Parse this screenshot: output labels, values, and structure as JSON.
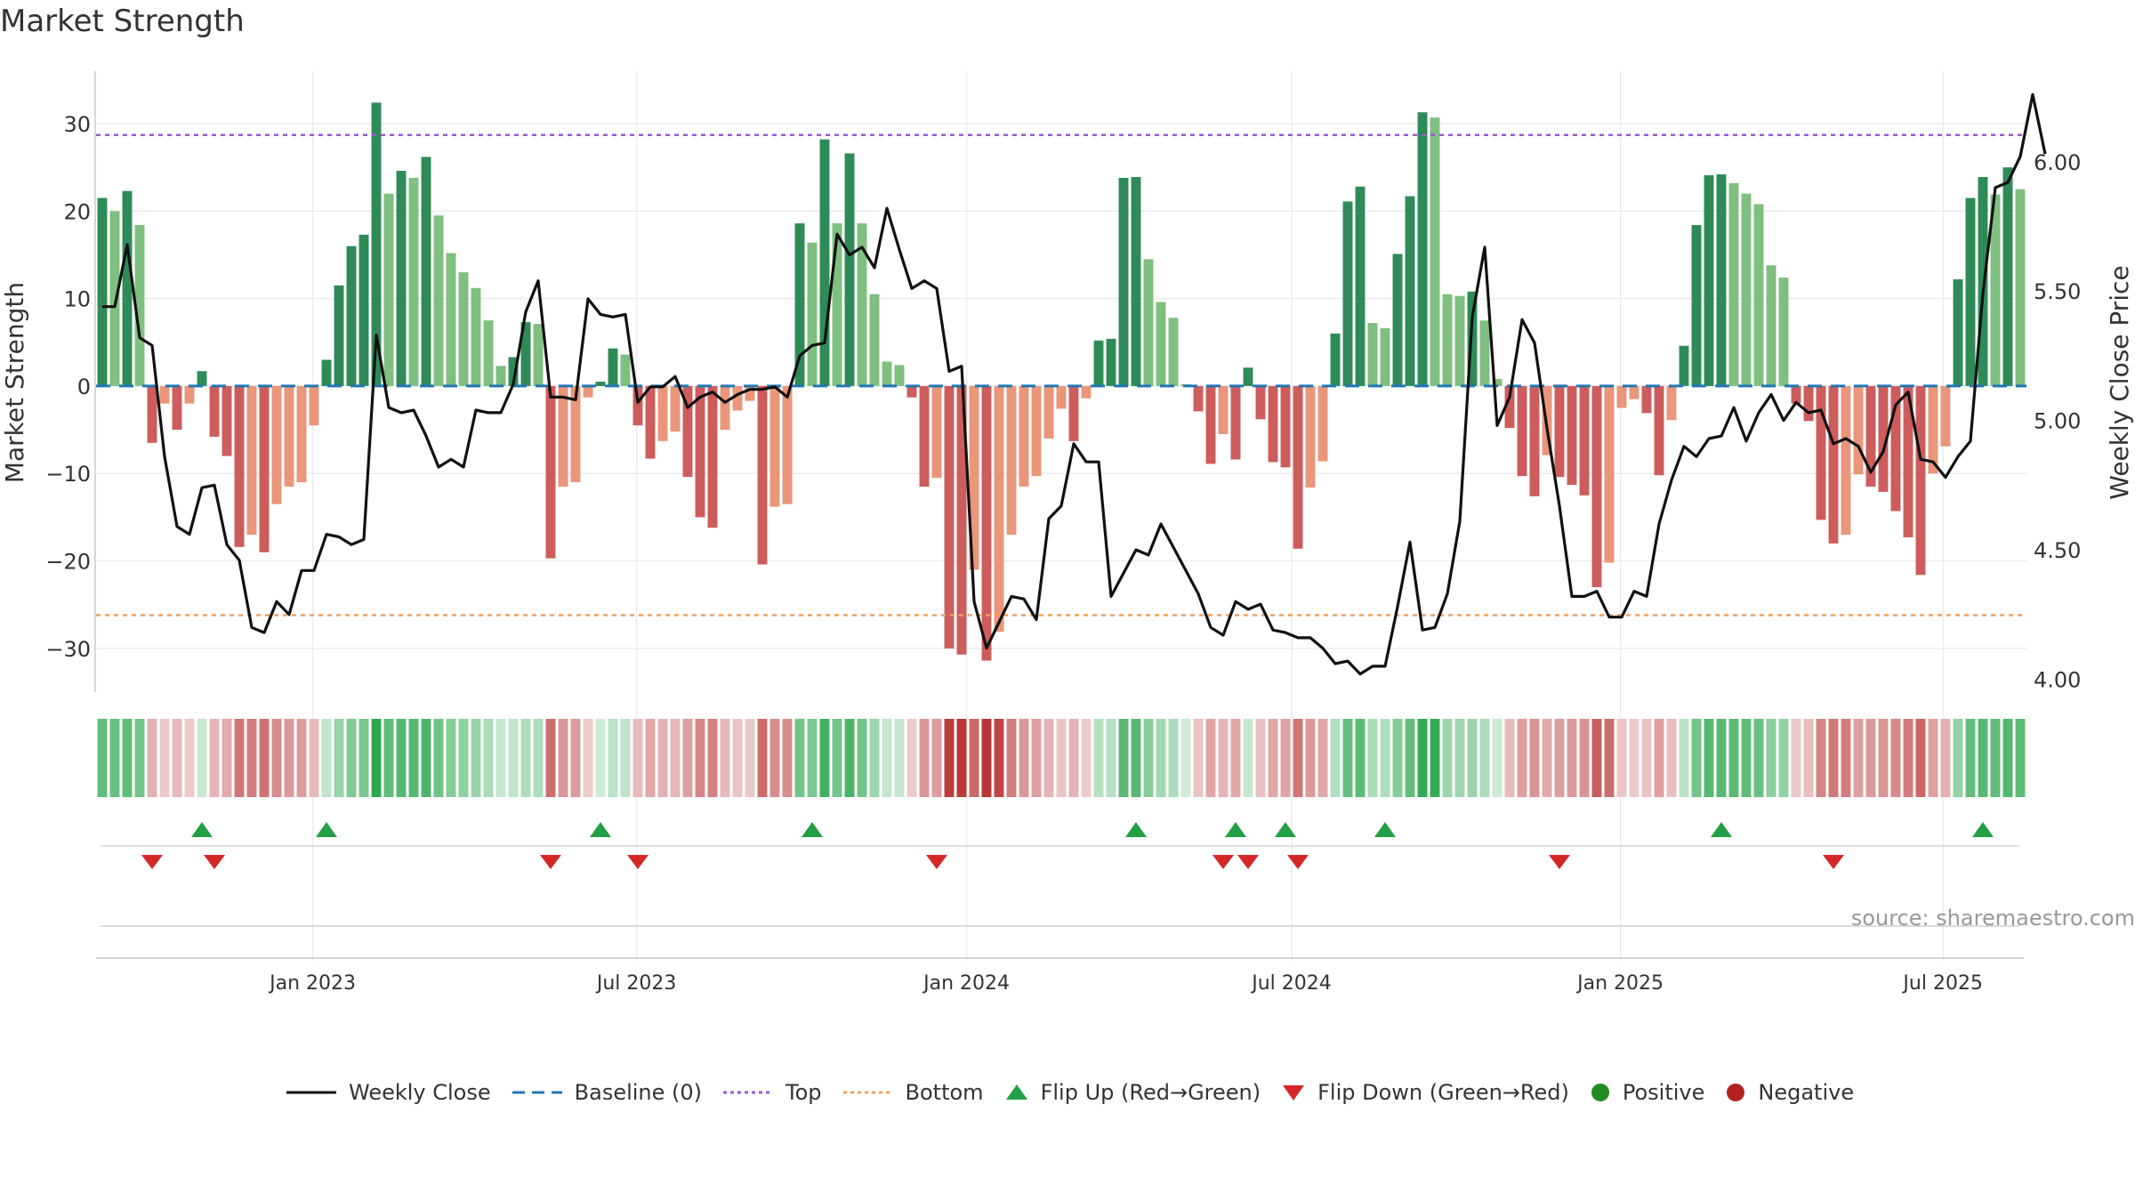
{
  "chart_data": {
    "type": "bar",
    "title": "Market Strength",
    "ylabel": "Market Strength",
    "y2label": "Weekly Close Price",
    "ylim": [
      -35,
      36
    ],
    "y2lim": [
      3.95,
      6.35
    ],
    "yticks": [
      "30",
      "20",
      "10",
      "0",
      "−10",
      "−20",
      "−30"
    ],
    "ytick_values": [
      30,
      20,
      10,
      0,
      -10,
      -20,
      -30
    ],
    "y2ticks": [
      "6.00",
      "5.50",
      "5.00",
      "4.50",
      "4.00"
    ],
    "y2tick_values": [
      6.0,
      5.5,
      5.0,
      4.5,
      4.0
    ],
    "xticks": [
      "Jan 2023",
      "Jul 2023",
      "Jan 2024",
      "Jul 2024",
      "Jan 2025",
      "Jul 2025"
    ],
    "xtick_weeks": [
      17.4,
      43.4,
      69.9,
      96,
      122.4,
      148.3
    ],
    "top_level": 28.7,
    "bottom_level": -26.2,
    "grid": true,
    "legend_position": "bottom",
    "source": "source: sharemaestro.com",
    "strength": [
      21.5,
      20,
      22.3,
      18.4,
      -6.5,
      -2,
      -5,
      -2,
      1.7,
      -5.8,
      -8,
      -18.4,
      -17,
      -19,
      -13.5,
      -11.5,
      -11,
      -4.5,
      3,
      11.5,
      16,
      17.3,
      32.4,
      22,
      24.6,
      23.8,
      26.2,
      19.5,
      15.2,
      13,
      11.2,
      7.5,
      2.3,
      3.3,
      7.3,
      7.1,
      -19.7,
      -11.5,
      -11,
      -1.3,
      0.5,
      4.3,
      3.6,
      -4.5,
      -8.3,
      -6.3,
      -5.2,
      -10.4,
      -15,
      -16.2,
      -5,
      -2.8,
      -1.7,
      -20.4,
      -13.8,
      -13.5,
      18.6,
      16.4,
      28.2,
      18.6,
      26.6,
      18.6,
      10.5,
      2.8,
      2.4,
      -1.3,
      -11.5,
      -10.5,
      -30,
      -30.7,
      -21,
      -31.4,
      -28.1,
      -17,
      -11.5,
      -10.3,
      -6,
      -2.6,
      -6.3,
      -1.4,
      5.2,
      5.4,
      23.8,
      23.9,
      14.5,
      9.6,
      7.8,
      0.2,
      -2.9,
      -8.9,
      -5.5,
      -8.4,
      2.1,
      -3.8,
      -8.7,
      -9.3,
      -18.6,
      -11.6,
      -8.6,
      6,
      21.1,
      22.8,
      7.2,
      6.6,
      15.1,
      21.7,
      31.3,
      30.7,
      10.5,
      10.3,
      10.8,
      7.5,
      0.8,
      -4.8,
      -10.3,
      -12.6,
      -7.9,
      -10.4,
      -11.3,
      -12.5,
      -23,
      -20.2,
      -2.5,
      -1.5,
      -3.1,
      -10.2,
      -3.9,
      4.6,
      18.4,
      24.1,
      24.2,
      23.2,
      22,
      20.8,
      13.8,
      12.4,
      -2,
      -4,
      -15.3,
      -18,
      -17,
      -10.1,
      -11.5,
      -12.1,
      -14.3,
      -17.3,
      -21.6,
      -10,
      -6.9,
      12.2,
      21.5,
      23.9,
      21.9,
      25,
      22.5
    ],
    "weekly_close": [
      5.44,
      5.44,
      5.68,
      5.32,
      5.29,
      4.86,
      4.59,
      4.56,
      4.74,
      4.75,
      4.52,
      4.46,
      4.2,
      4.18,
      4.3,
      4.25,
      4.42,
      4.42,
      4.56,
      4.55,
      4.52,
      4.54,
      5.33,
      5.05,
      5.03,
      5.04,
      4.94,
      4.82,
      4.85,
      4.82,
      5.04,
      5.03,
      5.03,
      5.14,
      5.42,
      5.54,
      5.09,
      5.09,
      5.08,
      5.47,
      5.41,
      5.4,
      5.41,
      5.07,
      5.13,
      5.13,
      5.17,
      5.05,
      5.09,
      5.11,
      5.07,
      5.1,
      5.12,
      5.12,
      5.13,
      5.09,
      5.25,
      5.29,
      5.3,
      5.72,
      5.64,
      5.67,
      5.59,
      5.82,
      5.66,
      5.51,
      5.54,
      5.51,
      5.19,
      5.21,
      4.3,
      4.12,
      4.22,
      4.32,
      4.31,
      4.23,
      4.62,
      4.67,
      4.91,
      4.84,
      4.84,
      4.32,
      4.41,
      4.5,
      4.48,
      4.6,
      4.51,
      4.42,
      4.33,
      4.2,
      4.17,
      4.3,
      4.27,
      4.29,
      4.19,
      4.18,
      4.16,
      4.16,
      4.12,
      4.06,
      4.07,
      4.02,
      4.05,
      4.05,
      4.28,
      4.53,
      4.19,
      4.2,
      4.33,
      4.61,
      5.4,
      5.67,
      4.98,
      5.09,
      5.39,
      5.3,
      4.97,
      4.67,
      4.32,
      4.32,
      4.34,
      4.24,
      4.24,
      4.34,
      4.32,
      4.6,
      4.77,
      4.9,
      4.86,
      4.93,
      4.94,
      5.05,
      4.92,
      5.03,
      5.1,
      5.0,
      5.07,
      5.03,
      5.04,
      4.91,
      4.93,
      4.9,
      4.8,
      4.88,
      5.06,
      5.11,
      4.85,
      4.84,
      4.78,
      4.86,
      4.92,
      5.49,
      5.9,
      5.92,
      6.02,
      6.26,
      6.03
    ],
    "flip_up_weeks": [
      8,
      18,
      40,
      57,
      83,
      91,
      95,
      103,
      130,
      151
    ],
    "flip_down_weeks": [
      4,
      9,
      36,
      43,
      67,
      90,
      92,
      96,
      117,
      139
    ],
    "series": [
      {
        "name": "Weekly Close"
      },
      {
        "name": "Baseline (0)"
      },
      {
        "name": "Top"
      },
      {
        "name": "Bottom"
      },
      {
        "name": "Flip Up (Red→Green)"
      },
      {
        "name": "Flip Down (Green→Red)"
      },
      {
        "name": "Positive"
      },
      {
        "name": "Negative"
      }
    ],
    "colors": {
      "pos_strong": "#2e8b57",
      "pos_light": "#7fbf7f",
      "neg_strong": "#cd5c5c",
      "neg_light": "#e9967a",
      "close_line": "#111111",
      "baseline": "#1f77b4",
      "top": "#9b59d0",
      "bottom": "#f0a060",
      "flip_up": "#22a045",
      "flip_down": "#d62728",
      "positive_dot": "#228b22",
      "negative_dot": "#b22222",
      "grid": "#ececec"
    }
  }
}
